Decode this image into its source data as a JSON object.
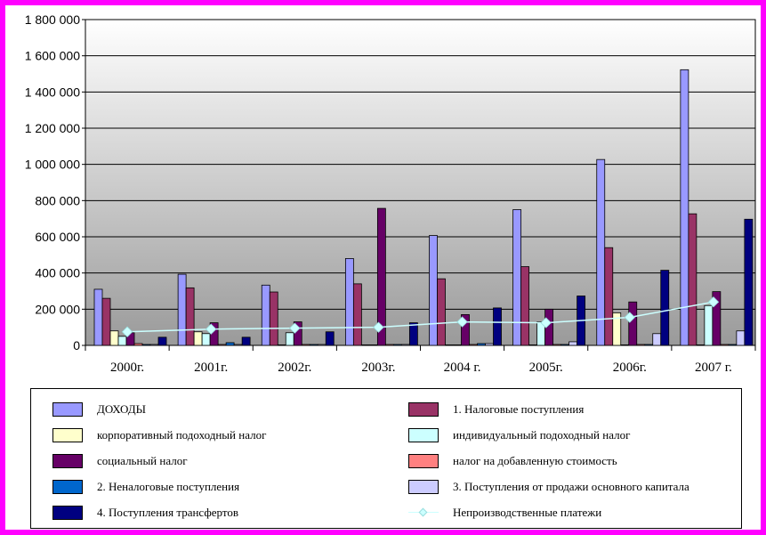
{
  "chart_data": {
    "type": "bar",
    "categories": [
      "2000г.",
      "2001г.",
      "2002г.",
      "2003г.",
      "2004 г.",
      "2005г.",
      "2006г.",
      "2007 г."
    ],
    "ylim": [
      0,
      1800000
    ],
    "yticks": [
      0,
      200000,
      400000,
      600000,
      800000,
      1000000,
      1200000,
      1400000,
      1600000,
      1800000
    ],
    "ytick_labels": [
      "0",
      "200 000",
      "400 000",
      "600 000",
      "800 000",
      "1 000 000",
      "1 200 000",
      "1 400 000",
      "1 600 000",
      "1 800 000"
    ],
    "grid": true,
    "legend_position": "bottom",
    "series": [
      {
        "name": "ДОХОДЫ",
        "color": "#9999ff",
        "values": [
          310000,
          393000,
          333000,
          480000,
          607000,
          750000,
          1027000,
          1523000
        ]
      },
      {
        "name": "1. Налоговые поступления",
        "color": "#993366",
        "values": [
          260000,
          318000,
          295000,
          340000,
          368000,
          435000,
          540000,
          727000
        ]
      },
      {
        "name": "корпоративный подоходный  налог",
        "color": "#ffffcc",
        "values": [
          80000,
          75000,
          3000,
          3000,
          3000,
          3000,
          180000,
          3000
        ]
      },
      {
        "name": "индивидуальный подоходный налог",
        "color": "#ccffff",
        "values": [
          50000,
          65000,
          70000,
          3000,
          3000,
          130000,
          3000,
          220000
        ]
      },
      {
        "name": "социальный налог",
        "color": "#660066",
        "values": [
          70000,
          125000,
          130000,
          757000,
          170000,
          200000,
          240000,
          297000
        ]
      },
      {
        "name": "налог на добавленную    стоимость",
        "color": "#ff8080",
        "values": [
          10000,
          5000,
          5000,
          5000,
          5000,
          5000,
          5000,
          5000
        ]
      },
      {
        "name": "2.  Неналоговые поступления",
        "color": "#0066cc",
        "values": [
          5000,
          15000,
          5000,
          5000,
          10000,
          5000,
          5000,
          5000
        ]
      },
      {
        "name": "3. Поступления от продажи  основного капитала",
        "color": "#ccccff",
        "values": [
          5000,
          5000,
          5000,
          5000,
          10000,
          20000,
          65000,
          80000
        ]
      },
      {
        "name": "4.  Поступления   трансфертов",
        "color": "#000080",
        "values": [
          45000,
          45000,
          75000,
          125000,
          207000,
          273000,
          415000,
          697000
        ]
      },
      {
        "name": "Непроизводственные платежи",
        "color": "#ccffff",
        "type": "line",
        "values": [
          75000,
          90000,
          95000,
          100000,
          130000,
          125000,
          155000,
          240000
        ]
      }
    ]
  }
}
